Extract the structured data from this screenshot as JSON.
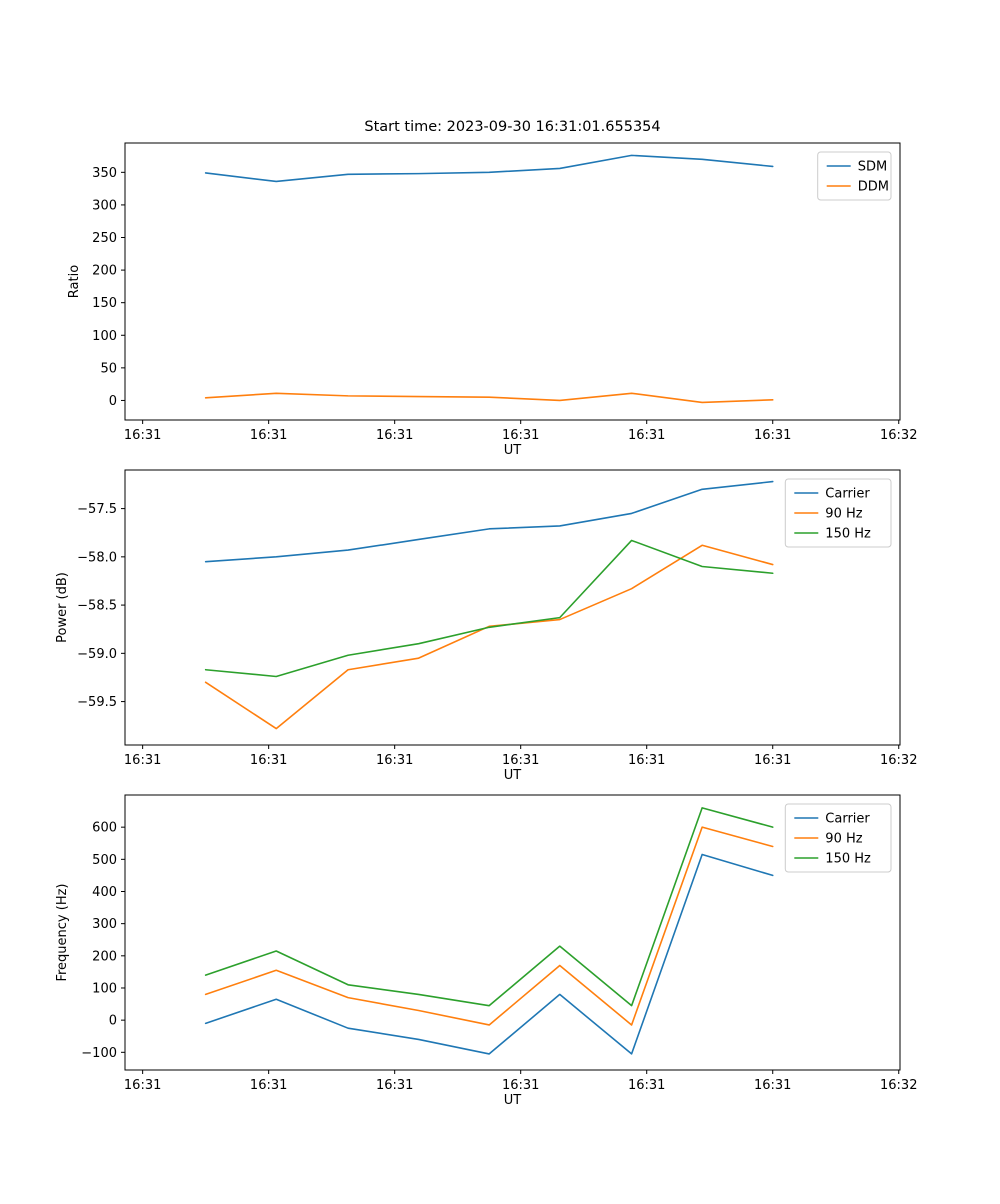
{
  "figure": {
    "background": "#ffffff",
    "title": "Start time: 2023-09-30 16:31:01.655354"
  },
  "colors": {
    "blue": "#1f77b4",
    "orange": "#ff7f0e",
    "green": "#2ca02c",
    "legend_border": "#cccccc",
    "axis": "#000000"
  },
  "chart_data": [
    {
      "id": "ratio",
      "type": "line",
      "title": "Start time: 2023-09-30 16:31:01.655354",
      "xlabel": "UT",
      "ylabel": "Ratio",
      "grid": false,
      "legend_position": "upper right",
      "x_tick_labels": [
        "16:31",
        "16:31",
        "16:31",
        "16:31",
        "16:31",
        "16:31",
        "16:32"
      ],
      "x_tick_seconds": [
        0,
        10,
        20,
        30,
        40,
        50,
        60
      ],
      "xlim_seconds": [
        -1.4,
        60.1
      ],
      "ylim": [
        -30,
        395
      ],
      "yticks": [
        {
          "v": 0,
          "label": "0"
        },
        {
          "v": 50,
          "label": "50"
        },
        {
          "v": 100,
          "label": "100"
        },
        {
          "v": 150,
          "label": "150"
        },
        {
          "v": 200,
          "label": "200"
        },
        {
          "v": 250,
          "label": "250"
        },
        {
          "v": 300,
          "label": "300"
        },
        {
          "v": 350,
          "label": "350"
        }
      ],
      "x_seconds": [
        5.0,
        10.6,
        16.3,
        21.9,
        27.5,
        33.1,
        38.8,
        44.4,
        50.0
      ],
      "series": [
        {
          "name": "SDM",
          "color": "#1f77b4",
          "values": [
            349,
            336,
            347,
            348,
            350,
            356,
            376,
            370,
            359
          ]
        },
        {
          "name": "DDM",
          "color": "#ff7f0e",
          "values": [
            4,
            11,
            7,
            6,
            5,
            0,
            11,
            -3,
            1
          ]
        }
      ]
    },
    {
      "id": "power",
      "type": "line",
      "title": "",
      "xlabel": "UT",
      "ylabel": "Power (dB)",
      "grid": false,
      "legend_position": "upper right",
      "x_tick_labels": [
        "16:31",
        "16:31",
        "16:31",
        "16:31",
        "16:31",
        "16:31",
        "16:32"
      ],
      "x_tick_seconds": [
        0,
        10,
        20,
        30,
        40,
        50,
        60
      ],
      "xlim_seconds": [
        -1.4,
        60.1
      ],
      "ylim": [
        -59.95,
        -57.1
      ],
      "yticks": [
        {
          "v": -59.5,
          "label": "−59.5"
        },
        {
          "v": -59.0,
          "label": "−59.0"
        },
        {
          "v": -58.5,
          "label": "−58.5"
        },
        {
          "v": -58.0,
          "label": "−58.0"
        },
        {
          "v": -57.5,
          "label": "−57.5"
        }
      ],
      "x_seconds": [
        5.0,
        10.6,
        16.3,
        21.9,
        27.5,
        33.1,
        38.8,
        44.4,
        50.0
      ],
      "series": [
        {
          "name": "Carrier",
          "color": "#1f77b4",
          "values": [
            -58.05,
            -58.0,
            -57.93,
            -57.82,
            -57.71,
            -57.68,
            -57.55,
            -57.3,
            -57.22
          ]
        },
        {
          "name": "90 Hz",
          "color": "#ff7f0e",
          "values": [
            -59.3,
            -59.78,
            -59.17,
            -59.05,
            -58.72,
            -58.65,
            -58.33,
            -57.88,
            -58.08
          ]
        },
        {
          "name": "150 Hz",
          "color": "#2ca02c",
          "values": [
            -59.17,
            -59.24,
            -59.02,
            -58.9,
            -58.73,
            -58.63,
            -57.83,
            -58.1,
            -58.17
          ]
        }
      ]
    },
    {
      "id": "frequency",
      "type": "line",
      "title": "",
      "xlabel": "UT",
      "ylabel": "Frequency (Hz)",
      "grid": false,
      "legend_position": "upper right",
      "x_tick_labels": [
        "16:31",
        "16:31",
        "16:31",
        "16:31",
        "16:31",
        "16:31",
        "16:32"
      ],
      "x_tick_seconds": [
        0,
        10,
        20,
        30,
        40,
        50,
        60
      ],
      "xlim_seconds": [
        -1.4,
        60.1
      ],
      "ylim": [
        -155,
        700
      ],
      "yticks": [
        {
          "v": -100,
          "label": "−100"
        },
        {
          "v": 0,
          "label": "0"
        },
        {
          "v": 100,
          "label": "100"
        },
        {
          "v": 200,
          "label": "200"
        },
        {
          "v": 300,
          "label": "300"
        },
        {
          "v": 400,
          "label": "400"
        },
        {
          "v": 500,
          "label": "500"
        },
        {
          "v": 600,
          "label": "600"
        }
      ],
      "x_seconds": [
        5.0,
        10.6,
        16.3,
        21.9,
        27.5,
        33.1,
        38.8,
        44.4,
        50.0
      ],
      "series": [
        {
          "name": "Carrier",
          "color": "#1f77b4",
          "values": [
            -10,
            65,
            -25,
            -60,
            -105,
            80,
            -105,
            515,
            450
          ]
        },
        {
          "name": "90 Hz",
          "color": "#ff7f0e",
          "values": [
            80,
            155,
            70,
            30,
            -15,
            170,
            -15,
            600,
            540
          ]
        },
        {
          "name": "150 Hz",
          "color": "#2ca02c",
          "values": [
            140,
            215,
            110,
            80,
            45,
            230,
            45,
            660,
            600
          ]
        }
      ]
    }
  ]
}
